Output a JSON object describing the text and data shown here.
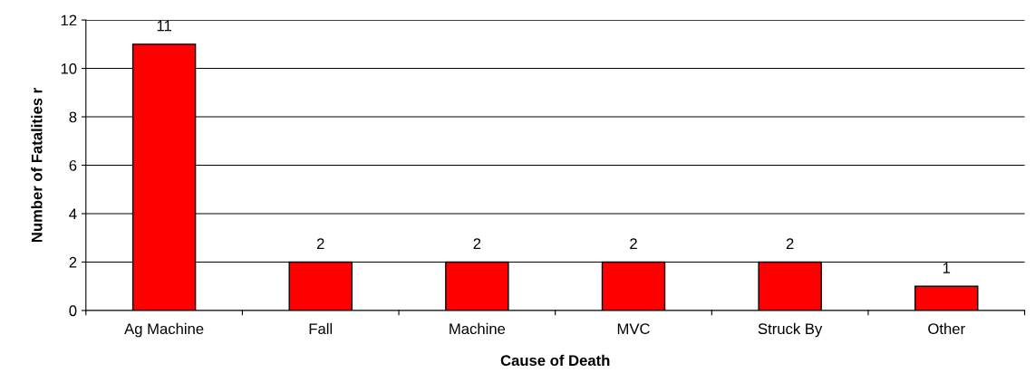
{
  "chart_data": {
    "type": "bar",
    "xlabel": "Cause of Death",
    "ylabel": "Number of Fatalities r",
    "categories": [
      "Ag Machine",
      "Fall",
      "Machine",
      "MVC",
      "Struck By",
      "Other"
    ],
    "values": [
      11,
      2,
      2,
      2,
      2,
      1
    ],
    "color": "#ff0000",
    "ylim": [
      0,
      12
    ],
    "yticks": [
      0,
      2,
      4,
      6,
      8,
      10,
      12
    ],
    "grid": "y",
    "data_labels": true
  }
}
